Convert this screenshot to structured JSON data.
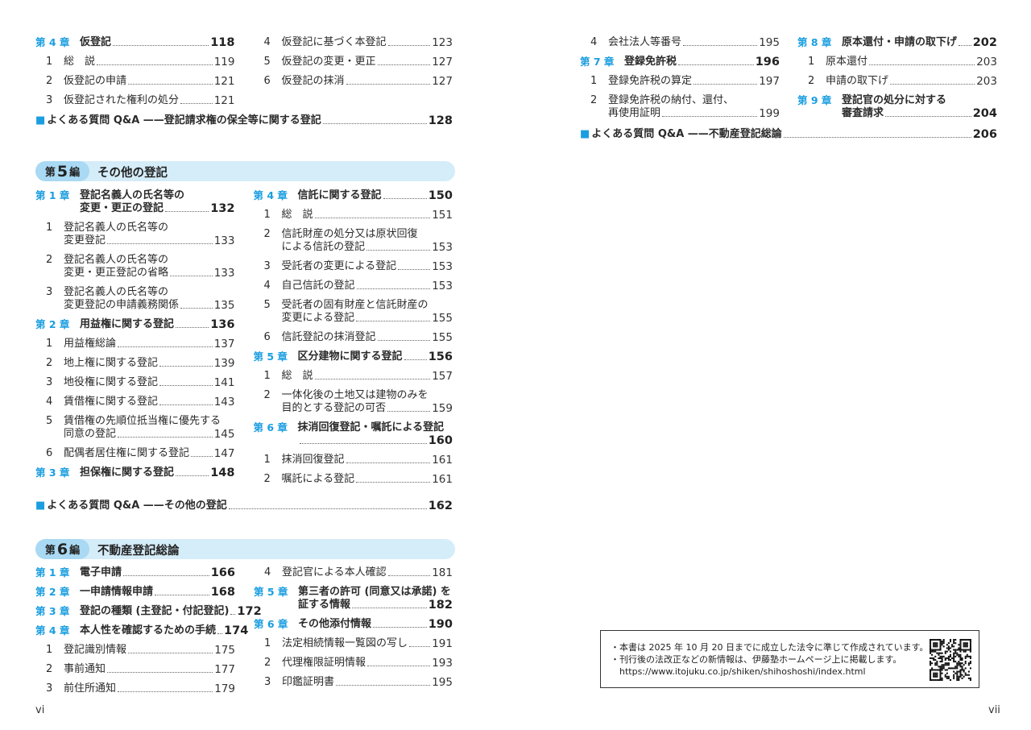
{
  "left_page": {
    "section4_tail": {
      "col1": [
        {
          "type": "chapter",
          "label": "第 4 章",
          "lines": [
            "仮登記"
          ],
          "page": "118"
        },
        {
          "type": "item",
          "num": "1",
          "lines": [
            "総　説"
          ],
          "page": "119"
        },
        {
          "type": "item",
          "num": "2",
          "lines": [
            "仮登記の申請"
          ],
          "page": "121"
        },
        {
          "type": "item",
          "num": "3",
          "lines": [
            "仮登記された権利の処分"
          ],
          "page": "121"
        }
      ],
      "col2": [
        {
          "type": "item",
          "num": "4",
          "lines": [
            "仮登記に基づく本登記"
          ],
          "page": "123"
        },
        {
          "type": "item",
          "num": "5",
          "lines": [
            "仮登記の変更・更正"
          ],
          "page": "127"
        },
        {
          "type": "item",
          "num": "6",
          "lines": [
            "仮登記の抹消"
          ],
          "page": "127"
        }
      ],
      "qa": {
        "marker": "■",
        "text": "よくある質問 Q&A ——登記請求権の保全等に関する登記",
        "page": "128"
      }
    },
    "section5": {
      "part_prefix": "第",
      "part_num": "5",
      "part_suffix": "編",
      "title": "その他の登記",
      "col1": [
        {
          "type": "chapter",
          "label": "第 1 章",
          "lines": [
            "登記名義人の氏名等の",
            "変更・更正の登記"
          ],
          "page": "132"
        },
        {
          "type": "item",
          "num": "1",
          "lines": [
            "登記名義人の氏名等の",
            "変更登記"
          ],
          "page": "133"
        },
        {
          "type": "item",
          "num": "2",
          "lines": [
            "登記名義人の氏名等の",
            "変更・更正登記の省略"
          ],
          "page": "133"
        },
        {
          "type": "item",
          "num": "3",
          "lines": [
            "登記名義人の氏名等の",
            "変更登記の申請義務関係"
          ],
          "page": "135"
        },
        {
          "type": "chapter",
          "label": "第 2 章",
          "lines": [
            "用益権に関する登記"
          ],
          "page": "136"
        },
        {
          "type": "item",
          "num": "1",
          "lines": [
            "用益権総論"
          ],
          "page": "137"
        },
        {
          "type": "item",
          "num": "2",
          "lines": [
            "地上権に関する登記"
          ],
          "page": "139"
        },
        {
          "type": "item",
          "num": "3",
          "lines": [
            "地役権に関する登記"
          ],
          "page": "141"
        },
        {
          "type": "item",
          "num": "4",
          "lines": [
            "賃借権に関する登記"
          ],
          "page": "143"
        },
        {
          "type": "item",
          "num": "5",
          "lines": [
            "賃借権の先順位抵当権に優先する",
            "同意の登記"
          ],
          "page": "145"
        },
        {
          "type": "item",
          "num": "6",
          "lines": [
            "配偶者居住権に関する登記"
          ],
          "page": "147"
        },
        {
          "type": "chapter",
          "label": "第 3 章",
          "lines": [
            "担保権に関する登記"
          ],
          "page": "148"
        }
      ],
      "col2": [
        {
          "type": "chapter",
          "label": "第 4 章",
          "lines": [
            "信託に関する登記"
          ],
          "page": "150"
        },
        {
          "type": "item",
          "num": "1",
          "lines": [
            "総　説"
          ],
          "page": "151"
        },
        {
          "type": "item",
          "num": "2",
          "lines": [
            "信託財産の処分又は原状回復",
            "による信託の登記"
          ],
          "page": "153"
        },
        {
          "type": "item",
          "num": "3",
          "lines": [
            "受託者の変更による登記"
          ],
          "page": "153"
        },
        {
          "type": "item",
          "num": "4",
          "lines": [
            "自己信託の登記"
          ],
          "page": "153"
        },
        {
          "type": "item",
          "num": "5",
          "lines": [
            "受託者の固有財産と信託財産の",
            "変更による登記"
          ],
          "page": "155"
        },
        {
          "type": "item",
          "num": "6",
          "lines": [
            "信託登記の抹消登記"
          ],
          "page": "155"
        },
        {
          "type": "chapter",
          "label": "第 5 章",
          "lines": [
            "区分建物に関する登記"
          ],
          "page": "156"
        },
        {
          "type": "item",
          "num": "1",
          "lines": [
            "総　説"
          ],
          "page": "157"
        },
        {
          "type": "item",
          "num": "2",
          "lines": [
            "一体化後の土地又は建物のみを",
            "目的とする登記の可否"
          ],
          "page": "159"
        },
        {
          "type": "chapter",
          "label": "第 6 章",
          "lines": [
            "抹消回復登記・嘱託による登記",
            ""
          ],
          "page": "160"
        },
        {
          "type": "item",
          "num": "1",
          "lines": [
            "抹消回復登記"
          ],
          "page": "161"
        },
        {
          "type": "item",
          "num": "2",
          "lines": [
            "嘱託による登記"
          ],
          "page": "161"
        }
      ],
      "qa": {
        "marker": "■",
        "text": "よくある質問 Q&A ——その他の登記",
        "page": "162"
      }
    },
    "section6": {
      "part_prefix": "第",
      "part_num": "6",
      "part_suffix": "編",
      "title": "不動産登記総論",
      "col1": [
        {
          "type": "chapter",
          "label": "第 1 章",
          "lines": [
            "電子申請"
          ],
          "page": "166"
        },
        {
          "type": "chapter",
          "label": "第 2 章",
          "lines": [
            "一申請情報申請"
          ],
          "page": "168"
        },
        {
          "type": "chapter",
          "label": "第 3 章",
          "lines": [
            "登記の種類 (主登記・付記登記)"
          ],
          "page": "172"
        },
        {
          "type": "chapter",
          "label": "第 4 章",
          "lines": [
            "本人性を確認するための手続"
          ],
          "page": "174"
        },
        {
          "type": "item",
          "num": "1",
          "lines": [
            "登記識別情報"
          ],
          "page": "175"
        },
        {
          "type": "item",
          "num": "2",
          "lines": [
            "事前通知"
          ],
          "page": "177"
        },
        {
          "type": "item",
          "num": "3",
          "lines": [
            "前住所通知"
          ],
          "page": "179"
        }
      ],
      "col2": [
        {
          "type": "item",
          "num": "4",
          "lines": [
            "登記官による本人確認"
          ],
          "page": "181"
        },
        {
          "type": "chapter",
          "label": "第 5 章",
          "lines": [
            "第三者の許可 (同意又は承諾) を",
            "証する情報"
          ],
          "page": "182"
        },
        {
          "type": "chapter",
          "label": "第 6 章",
          "lines": [
            "その他添付情報"
          ],
          "page": "190"
        },
        {
          "type": "item",
          "num": "1",
          "lines": [
            "法定相続情報一覧図の写し"
          ],
          "page": "191"
        },
        {
          "type": "item",
          "num": "2",
          "lines": [
            "代理権限証明情報"
          ],
          "page": "193"
        },
        {
          "type": "item",
          "num": "3",
          "lines": [
            "印鑑証明書"
          ],
          "page": "195"
        }
      ]
    },
    "folio": "vi"
  },
  "right_page": {
    "section6_tail": {
      "col1": [
        {
          "type": "item",
          "num": "4",
          "lines": [
            "会社法人等番号"
          ],
          "page": "195"
        },
        {
          "type": "chapter",
          "label": "第 7 章",
          "lines": [
            "登録免許税"
          ],
          "page": "196"
        },
        {
          "type": "item",
          "num": "1",
          "lines": [
            "登録免許税の算定"
          ],
          "page": "197"
        },
        {
          "type": "item",
          "num": "2",
          "lines": [
            "登録免許税の納付、還付、",
            "再使用証明"
          ],
          "page": "199"
        }
      ],
      "col2": [
        {
          "type": "chapter",
          "label": "第 8 章",
          "lines": [
            "原本還付・申請の取下げ"
          ],
          "page": "202"
        },
        {
          "type": "item",
          "num": "1",
          "lines": [
            "原本還付"
          ],
          "page": "203"
        },
        {
          "type": "item",
          "num": "2",
          "lines": [
            "申請の取下げ"
          ],
          "page": "203"
        },
        {
          "type": "chapter",
          "label": "第 9 章",
          "lines": [
            "登記官の処分に対する",
            "審査請求"
          ],
          "page": "204"
        }
      ],
      "qa": {
        "marker": "■",
        "text": "よくある質問 Q&A ——不動産登記総論",
        "page": "206"
      }
    },
    "note": {
      "lines": [
        "・本書は 2025 年 10 月 20 日までに成立した法令に準じて作成されています。",
        "・刊行後の法改正などの新情報は、伊藤塾ホームページ上に掲載します。",
        "　https://www.itojuku.co.jp/shiken/shihoshoshi/index.html"
      ],
      "qr_icon": "qr-code-icon"
    },
    "folio": "vii"
  },
  "colors": {
    "accent": "#1a9ee0",
    "section_band": "#d5ecf9",
    "section_badge": "#a9d9f3"
  }
}
